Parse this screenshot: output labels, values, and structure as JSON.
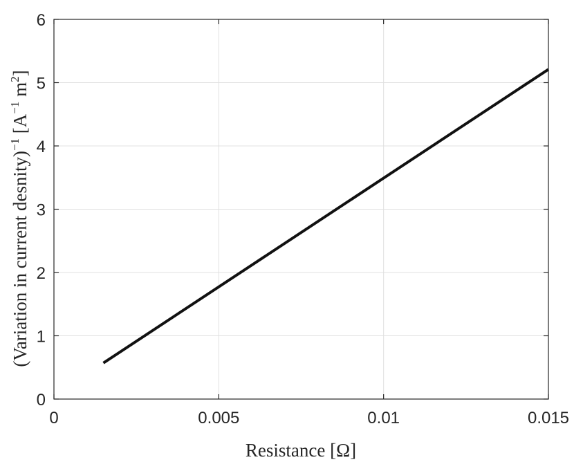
{
  "chart_data": {
    "type": "line",
    "title": "",
    "xlabel": "Resistance [Ω]",
    "ylabel": {
      "main": "(Variation in current desnity)",
      "sup1": "−1",
      "bracket_open": " [A",
      "sup2": "−1",
      "unit_m": " m",
      "sup3": "2",
      "bracket_close": "]"
    },
    "xlim": [
      0,
      0.015
    ],
    "ylim": [
      0,
      6
    ],
    "xticks": [
      0,
      0.005,
      0.01,
      0.015
    ],
    "xtick_labels": [
      "0",
      "0.005",
      "0.01",
      "0.015"
    ],
    "yticks": [
      0,
      1,
      2,
      3,
      4,
      5,
      6
    ],
    "ytick_labels": [
      "0",
      "1",
      "2",
      "3",
      "4",
      "5",
      "6"
    ],
    "grid": true,
    "series": [
      {
        "x": [
          0.0015,
          0.015
        ],
        "y": [
          0.57,
          5.21
        ],
        "color": "#000000"
      }
    ],
    "colors": {
      "axis": "#262626",
      "grid": "#e0e0e0",
      "line": "#111111"
    }
  }
}
